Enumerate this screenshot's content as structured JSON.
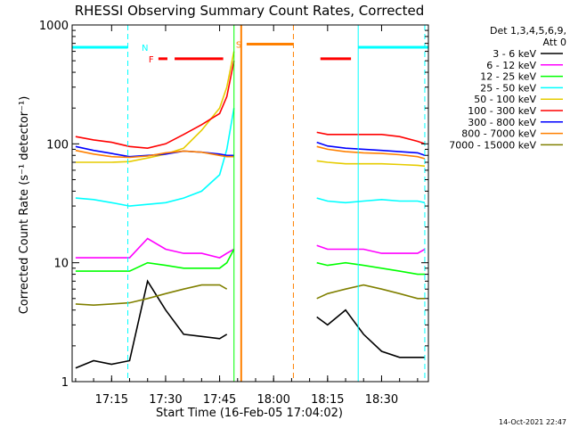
{
  "chart_data": {
    "type": "line",
    "title": "RHESSI Observing Summary Count Rates, Corrected",
    "xlabel": "Start Time (16-Feb-05 17:04:02)",
    "ylabel": "Corrected Count Rate (s⁻¹ detector⁻¹)",
    "y_scale": "log",
    "ylim": [
      1,
      1000
    ],
    "xlim": [
      "17:04:02",
      "18:43:00"
    ],
    "x_ticks": [
      "17:15",
      "17:30",
      "17:45",
      "18:00",
      "18:15",
      "18:30"
    ],
    "y_ticks": [
      "1",
      "10",
      "100",
      "1000"
    ],
    "x": [
      "17:05",
      "17:10",
      "17:15",
      "17:20",
      "17:25",
      "17:30",
      "17:35",
      "17:40",
      "17:45",
      "17:47",
      "17:49",
      "17:51",
      "18:12",
      "18:15",
      "18:20",
      "18:25",
      "18:30",
      "18:35",
      "18:40",
      "18:42"
    ],
    "series": [
      {
        "name": "3 - 6 keV",
        "color": "#000000",
        "values": [
          1.3,
          1.5,
          1.4,
          1.5,
          7,
          4,
          2.5,
          2.4,
          2.3,
          2.5,
          null,
          null,
          3.5,
          3,
          4,
          2.5,
          1.8,
          1.6,
          1.6,
          1.6
        ]
      },
      {
        "name": "6 - 12 keV",
        "color": "#ff00ff",
        "values": [
          11,
          11,
          11,
          11,
          16,
          13,
          12,
          12,
          11,
          12,
          13,
          null,
          14,
          13,
          13,
          13,
          12,
          12,
          12,
          13
        ]
      },
      {
        "name": "12 - 25 keV",
        "color": "#00ff00",
        "values": [
          8.5,
          8.5,
          8.5,
          8.5,
          10,
          9.5,
          9,
          9,
          9,
          10,
          13,
          null,
          10,
          9.5,
          10,
          9.5,
          9,
          8.5,
          8,
          8
        ]
      },
      {
        "name": "25 - 50 keV",
        "color": "#00ffff",
        "values": [
          35,
          34,
          32,
          30,
          31,
          32,
          35,
          40,
          55,
          90,
          200,
          null,
          35,
          33,
          32,
          33,
          34,
          33,
          33,
          32
        ]
      },
      {
        "name": "50 - 100 keV",
        "color": "#e6cc00",
        "values": [
          70,
          70,
          70,
          71,
          76,
          82,
          92,
          130,
          200,
          300,
          600,
          null,
          72,
          70,
          68,
          68,
          68,
          67,
          66,
          65
        ]
      },
      {
        "name": "100 - 300 keV",
        "color": "#ff0000",
        "values": [
          115,
          108,
          103,
          95,
          92,
          100,
          120,
          145,
          180,
          250,
          500,
          null,
          125,
          120,
          120,
          120,
          120,
          115,
          105,
          100
        ]
      },
      {
        "name": "300 - 800 keV",
        "color": "#0000ff",
        "values": [
          95,
          88,
          83,
          78,
          80,
          82,
          87,
          85,
          82,
          80,
          80,
          null,
          103,
          96,
          92,
          90,
          88,
          86,
          84,
          80
        ]
      },
      {
        "name": "800 - 7000 keV",
        "color": "#ff8000",
        "values": [
          88,
          82,
          78,
          77,
          79,
          84,
          87,
          85,
          80,
          78,
          78,
          null,
          95,
          90,
          86,
          84,
          83,
          81,
          78,
          75
        ]
      },
      {
        "name": "7000 - 15000 keV",
        "color": "#808000",
        "values": [
          4.5,
          4.4,
          4.5,
          4.6,
          5,
          5.5,
          6,
          6.5,
          6.5,
          6,
          null,
          null,
          5,
          5.5,
          6,
          6.5,
          6,
          5.5,
          5,
          5
        ]
      }
    ],
    "bars": [
      {
        "label": "N",
        "color": "#00ffff",
        "y": 650,
        "intervals": [
          [
            "17:04:02",
            "17:19:30"
          ],
          [
            "18:23:30",
            "18:43:00"
          ]
        ]
      },
      {
        "label": "F",
        "color": "#ff0000",
        "y": 520,
        "intervals": [
          [
            "17:28:00",
            "17:30:30"
          ],
          [
            "17:32:30",
            "17:46:00"
          ],
          [
            "18:13:00",
            "18:21:30"
          ]
        ]
      },
      {
        "label": "S",
        "color": "#ff8000",
        "y": 690,
        "intervals": [
          [
            "17:52:30",
            "18:05:30"
          ]
        ]
      }
    ],
    "vlines": [
      {
        "time": "17:19:30",
        "color": "#00ffff",
        "style": "dashed"
      },
      {
        "time": "18:23:30",
        "color": "#00ffff",
        "style": "solid"
      },
      {
        "time": "18:42:00",
        "color": "#00ffff",
        "style": "dashed"
      },
      {
        "time": "17:49:00",
        "color": "#00ff00",
        "style": "solid"
      },
      {
        "time": "17:51:00",
        "color": "#ff8000",
        "style": "solid"
      },
      {
        "time": "18:05:30",
        "color": "#ff8000",
        "style": "dashed"
      }
    ],
    "legend_position": "right",
    "grid": false
  },
  "legend": {
    "header1": "Det 1,3,4,5,6,9,",
    "header2": "Att 0"
  },
  "footer_timestamp": "14-Oct-2021 22:47"
}
